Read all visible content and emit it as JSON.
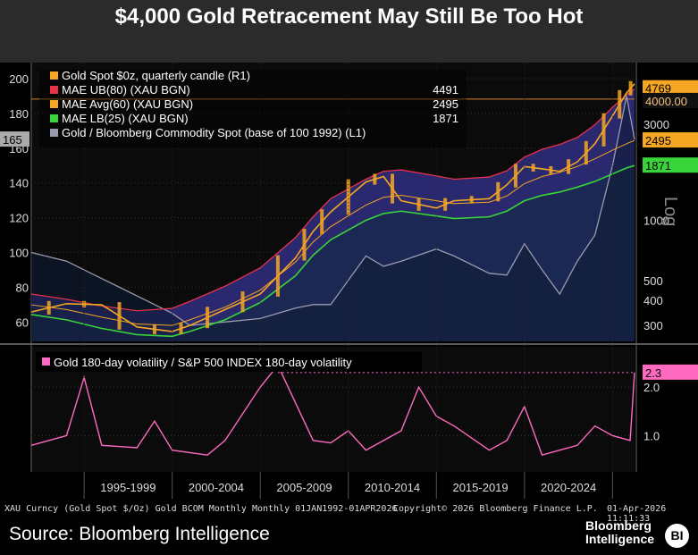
{
  "title": "$4,000 Gold Retracement May Still Be Too Hot",
  "chart_data": [
    {
      "type": "line",
      "title": "Gold spot vs Bloomberg Commodity Spot with MAE bands",
      "x": [
        1992,
        1994,
        1996,
        1998,
        2000,
        2001,
        2003,
        2005,
        2007,
        2008,
        2009,
        2011,
        2012,
        2013,
        2015,
        2016,
        2018,
        2019,
        2020,
        2021,
        2022,
        2023,
        2024,
        2025,
        2025.8,
        2026.25
      ],
      "x_ticks": [
        "1995-1999",
        "2000-2004",
        "2005-2009",
        "2010-2014",
        "2015-2019",
        "2020-2024"
      ],
      "left_axis": {
        "ticks": [
          60,
          80,
          100,
          120,
          140,
          160,
          180,
          200
        ],
        "label": ""
      },
      "right_axis": {
        "label": "Log",
        "ticks": [
          300,
          400,
          500,
          1000,
          3000
        ],
        "ylim": [
          250,
          5600
        ]
      },
      "series": [
        {
          "name": "Gold Spot $0z, quarterly candle (R1)",
          "color": "#f5a623",
          "last": 4769,
          "values": [
            350,
            385,
            380,
            295,
            280,
            300,
            360,
            430,
            650,
            880,
            1100,
            1550,
            1650,
            1250,
            1150,
            1250,
            1280,
            1500,
            1850,
            1800,
            1750,
            1950,
            2400,
            3300,
            4300,
            4769
          ]
        },
        {
          "name": "MAE UB(80) (XAU BGN)",
          "color": "#e8324a",
          "last": 4491,
          "values": [
            430,
            405,
            375,
            355,
            365,
            395,
            470,
            580,
            820,
            1040,
            1280,
            1600,
            1750,
            1780,
            1660,
            1600,
            1640,
            1760,
            2060,
            2250,
            2380,
            2580,
            2980,
            3640,
            4200,
            4491
          ]
        },
        {
          "name": "MAE Avg(60) (XAU BGN)",
          "color": "#f5a623",
          "last": 2495,
          "values": [
            380,
            360,
            330,
            305,
            300,
            320,
            370,
            450,
            620,
            780,
            930,
            1190,
            1300,
            1330,
            1250,
            1210,
            1230,
            1320,
            1520,
            1650,
            1730,
            1850,
            2020,
            2230,
            2400,
            2495
          ]
        },
        {
          "name": "MAE LB(25) (XAU BGN)",
          "color": "#39d439",
          "last": 1871,
          "values": [
            340,
            320,
            290,
            270,
            265,
            280,
            320,
            390,
            530,
            670,
            800,
            1000,
            1080,
            1110,
            1050,
            1020,
            1040,
            1110,
            1250,
            1330,
            1380,
            1460,
            1560,
            1700,
            1820,
            1871
          ]
        },
        {
          "name": "Gold / Bloomberg Commodity Spot (base of 100 1992) (L1)",
          "color": "#9a9aae",
          "last": 165,
          "values": [
            100,
            95,
            85,
            75,
            65,
            58,
            60,
            62,
            68,
            70,
            70,
            98,
            92,
            95,
            102,
            98,
            88,
            87,
            105,
            90,
            76,
            95,
            110,
            150,
            190,
            165
          ]
        }
      ]
    },
    {
      "type": "line",
      "title": "Gold 180-day volatility / S&P 500 INDEX 180-day volatility",
      "x": [
        1992,
        1994,
        1995,
        1996,
        1998,
        1999,
        2000,
        2002,
        2003,
        2005,
        2006,
        2008,
        2009,
        2010,
        2011,
        2013,
        2014,
        2015,
        2016,
        2018,
        2019,
        2020,
        2021,
        2023,
        2024,
        2025,
        2026,
        2026.25
      ],
      "y_ticks": [
        1.0,
        2.0
      ],
      "series": [
        {
          "name": "Gold 180-day volatility / S&P 500 INDEX 180-day volatility",
          "color": "#ff6ac1",
          "last": 2.3,
          "values": [
            0.8,
            1.0,
            2.2,
            0.8,
            0.75,
            1.3,
            0.7,
            0.6,
            0.9,
            2.0,
            2.45,
            0.9,
            0.85,
            1.1,
            0.7,
            1.1,
            2.0,
            1.4,
            1.2,
            0.7,
            0.9,
            1.6,
            0.6,
            0.8,
            1.2,
            1.0,
            0.9,
            2.3
          ]
        }
      ]
    }
  ],
  "legend_top": [
    {
      "label": "Gold Spot $0z, quarterly candle (R1)",
      "value": "",
      "color": "#f5a623"
    },
    {
      "label": "MAE UB(80) (XAU BGN)",
      "value": "4491",
      "color": "#e8324a"
    },
    {
      "label": "MAE Avg(60) (XAU BGN)",
      "value": "2495",
      "color": "#f5a623"
    },
    {
      "label": "MAE LB(25) (XAU BGN)",
      "value": "1871",
      "color": "#39d439"
    },
    {
      "label": "Gold / Bloomberg Commodity Spot (base of 100 1992) (L1)",
      "value": "",
      "color": "#9a9aae"
    }
  ],
  "legend_bottom": {
    "label": "Gold 180-day volatility / S&P 500 INDEX 180-day volatility",
    "color": "#ff6ac1"
  },
  "badges": {
    "gold": "4769",
    "level": "4000.00",
    "avg": "2495",
    "lb": "1871",
    "ratio": "165",
    "vol": "2.3"
  },
  "footer": {
    "left": "XAU Curncy (Gold Spot  $/Oz) Gold BCOM Monthly Monthly 01JAN1992-01APR2026",
    "middle": "Copyright© 2026 Bloomberg Finance L.P.",
    "right": "01-Apr-2026 11:11:33",
    "source": "Source: Bloomberg Intelligence",
    "brand_line1": "Bloomberg",
    "brand_line2": "Intelligence",
    "brand_badge": "BI"
  }
}
